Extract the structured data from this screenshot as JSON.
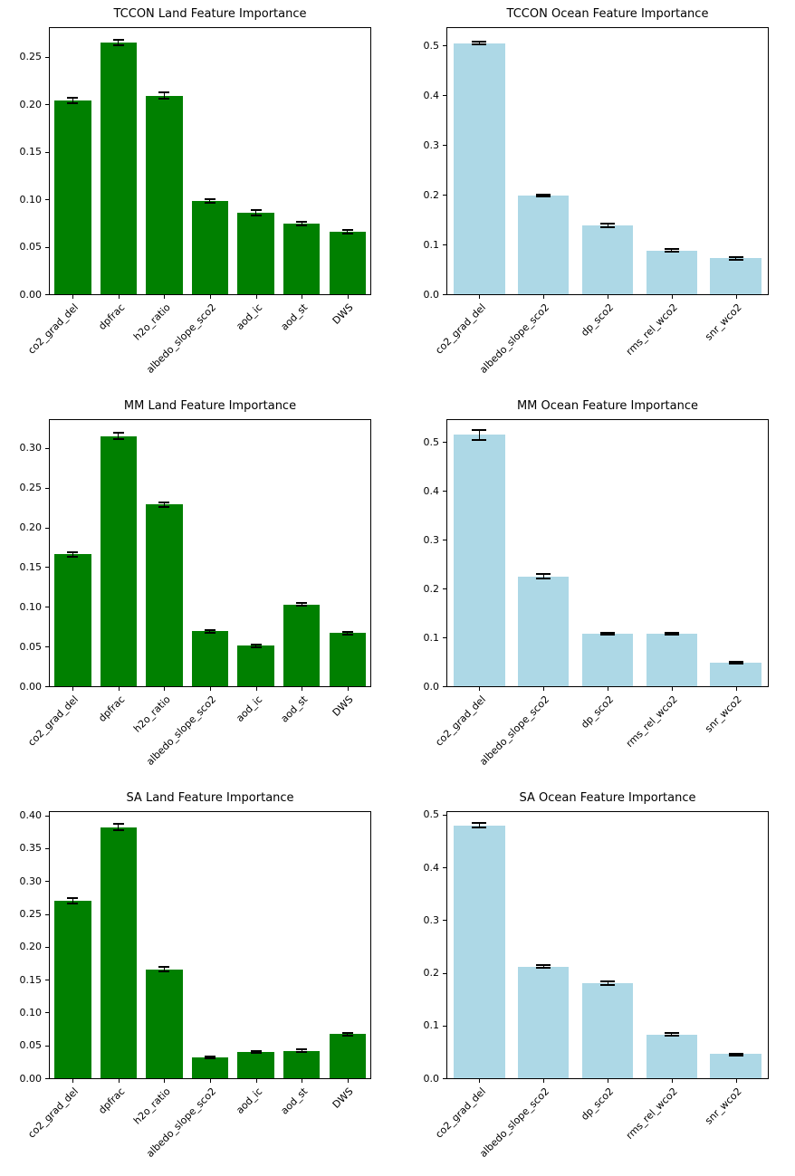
{
  "figure": {
    "background": "#ffffff",
    "text_color": "#000000",
    "axis_color": "#000000"
  },
  "chart_data": [
    {
      "type": "bar",
      "title": "TCCON Land Feature Importance",
      "bar_color": "#008000",
      "error_color": "#000000",
      "categories": [
        "co2_grad_del",
        "dpfrac",
        "h2o_ratio",
        "albedo_slope_sco2",
        "aod_ic",
        "aod_st",
        "DWS"
      ],
      "values": [
        0.204,
        0.265,
        0.209,
        0.098,
        0.086,
        0.074,
        0.066
      ],
      "errors": [
        0.004,
        0.004,
        0.004,
        0.003,
        0.004,
        0.003,
        0.003
      ],
      "ylim": [
        0,
        0.28
      ],
      "yticks": [
        0,
        0.05,
        0.1,
        0.15,
        0.2,
        0.25
      ],
      "ytick_labels": [
        "0.00",
        "0.05",
        "0.10",
        "0.15",
        "0.20",
        "0.25"
      ],
      "xlabel": "",
      "ylabel": "",
      "grid": false,
      "legend": "none"
    },
    {
      "type": "bar",
      "title": "TCCON Ocean Feature Importance",
      "bar_color": "#ADD8E6",
      "error_color": "#000000",
      "categories": [
        "co2_grad_del",
        "albedo_slope_sco2",
        "dp_sco2",
        "rms_rel_wco2",
        "snr_wco2"
      ],
      "values": [
        0.505,
        0.198,
        0.138,
        0.088,
        0.072
      ],
      "errors": [
        0.005,
        0.004,
        0.005,
        0.004,
        0.004
      ],
      "ylim": [
        0,
        0.535
      ],
      "yticks": [
        0,
        0.1,
        0.2,
        0.3,
        0.4,
        0.5
      ],
      "ytick_labels": [
        "0.0",
        "0.1",
        "0.2",
        "0.3",
        "0.4",
        "0.5"
      ],
      "xlabel": "",
      "ylabel": "",
      "grid": false,
      "legend": "none"
    },
    {
      "type": "bar",
      "title": "MM Land Feature Importance",
      "bar_color": "#008000",
      "error_color": "#000000",
      "categories": [
        "co2_grad_del",
        "dpfrac",
        "h2o_ratio",
        "albedo_slope_sco2",
        "aod_ic",
        "aod_st",
        "DWS"
      ],
      "values": [
        0.166,
        0.315,
        0.229,
        0.069,
        0.051,
        0.103,
        0.067
      ],
      "errors": [
        0.004,
        0.005,
        0.004,
        0.003,
        0.003,
        0.003,
        0.003
      ],
      "ylim": [
        0,
        0.335
      ],
      "yticks": [
        0,
        0.05,
        0.1,
        0.15,
        0.2,
        0.25,
        0.3
      ],
      "ytick_labels": [
        "0.00",
        "0.05",
        "0.10",
        "0.15",
        "0.20",
        "0.25",
        "0.30"
      ],
      "xlabel": "",
      "ylabel": "",
      "grid": false,
      "legend": "none"
    },
    {
      "type": "bar",
      "title": "MM Ocean Feature Importance",
      "bar_color": "#ADD8E6",
      "error_color": "#000000",
      "categories": [
        "co2_grad_del",
        "albedo_slope_sco2",
        "dp_sco2",
        "rms_rel_wco2",
        "snr_wco2"
      ],
      "values": [
        0.515,
        0.225,
        0.107,
        0.107,
        0.048
      ],
      "errors": [
        0.012,
        0.007,
        0.004,
        0.004,
        0.004
      ],
      "ylim": [
        0,
        0.545
      ],
      "yticks": [
        0,
        0.1,
        0.2,
        0.3,
        0.4,
        0.5
      ],
      "ytick_labels": [
        "0.0",
        "0.1",
        "0.2",
        "0.3",
        "0.4",
        "0.5"
      ],
      "xlabel": "",
      "ylabel": "",
      "grid": false,
      "legend": "none"
    },
    {
      "type": "bar",
      "title": "SA Land Feature Importance",
      "bar_color": "#008000",
      "error_color": "#000000",
      "categories": [
        "co2_grad_del",
        "dpfrac",
        "h2o_ratio",
        "albedo_slope_sco2",
        "aod_ic",
        "aod_st",
        "DWS"
      ],
      "values": [
        0.27,
        0.382,
        0.166,
        0.032,
        0.04,
        0.042,
        0.067
      ],
      "errors": [
        0.006,
        0.006,
        0.005,
        0.002,
        0.003,
        0.004,
        0.003
      ],
      "ylim": [
        0,
        0.405
      ],
      "yticks": [
        0,
        0.05,
        0.1,
        0.15,
        0.2,
        0.25,
        0.3,
        0.35,
        0.4
      ],
      "ytick_labels": [
        "0.00",
        "0.05",
        "0.10",
        "0.15",
        "0.20",
        "0.25",
        "0.30",
        "0.35",
        "0.40"
      ],
      "xlabel": "",
      "ylabel": "",
      "grid": false,
      "legend": "none"
    },
    {
      "type": "bar",
      "title": "SA Ocean Feature Importance",
      "bar_color": "#ADD8E6",
      "error_color": "#000000",
      "categories": [
        "co2_grad_del",
        "albedo_slope_sco2",
        "dp_sco2",
        "rms_rel_wco2",
        "snr_wco2"
      ],
      "values": [
        0.48,
        0.212,
        0.18,
        0.083,
        0.046
      ],
      "errors": [
        0.006,
        0.005,
        0.005,
        0.004,
        0.003
      ],
      "ylim": [
        0,
        0.505
      ],
      "yticks": [
        0,
        0.1,
        0.2,
        0.3,
        0.4,
        0.5
      ],
      "ytick_labels": [
        "0.0",
        "0.1",
        "0.2",
        "0.3",
        "0.4",
        "0.5"
      ],
      "xlabel": "",
      "ylabel": "",
      "grid": false,
      "legend": "none"
    }
  ]
}
